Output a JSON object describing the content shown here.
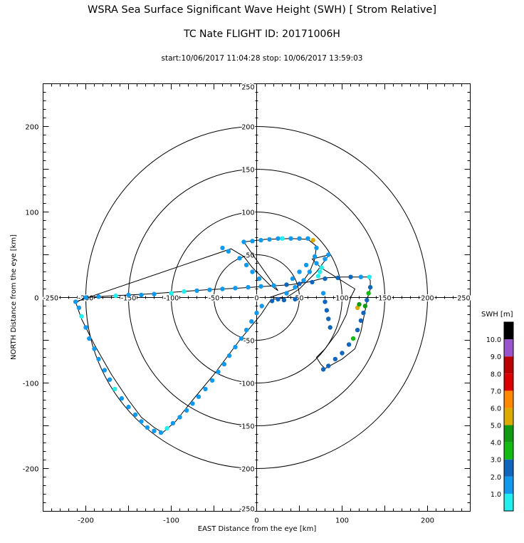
{
  "header": {
    "title": "WSRA Sea Surface Significant Wave Height (SWH) [ Strom Relative]",
    "subtitle": "TC Nate  FLIGHT ID: 20171006H",
    "timerange": "start:10/06/2017 11:04:28 stop: 10/06/2017 13:59:03"
  },
  "chart_data": {
    "type": "scatter",
    "title": "WSRA Sea Surface Significant Wave Height (SWH) [ Strom Relative]",
    "xlabel": "EAST Distance from the eye [km]",
    "ylabel": "NORTH Distance from the eye [km]",
    "xlim": [
      -250,
      250
    ],
    "ylim": [
      -250,
      250
    ],
    "xticks": [
      -200,
      -100,
      0,
      100,
      200
    ],
    "yticks": [
      -200,
      -100,
      0,
      100,
      200
    ],
    "inner_axis_ticks": [
      "-250",
      "-200",
      "-150",
      "-100",
      "-50",
      "0",
      "50",
      "100",
      "150",
      "200",
      "250"
    ],
    "range_rings_km": [
      50,
      100,
      150,
      200
    ],
    "colorbar": {
      "title": "SWH [m]",
      "levels": [
        "1.0",
        "2.0",
        "3.0",
        "4.0",
        "5.0",
        "6.0",
        "7.0",
        "8.0",
        "9.0",
        "10.0"
      ],
      "colors": [
        "#22eeee",
        "#1199ee",
        "#1166bb",
        "#11bb11",
        "#119911",
        "#ddaa00",
        "#ff8800",
        "#dd0000",
        "#bb0000",
        "#9955cc",
        "#000000"
      ]
    },
    "flight_track": [
      [
        -210,
        -5
      ],
      [
        -200,
        0
      ],
      [
        -170,
        2
      ],
      [
        -130,
        4
      ],
      [
        -100,
        6
      ],
      [
        -60,
        9
      ],
      [
        -20,
        11
      ],
      [
        10,
        13
      ],
      [
        40,
        15
      ],
      [
        60,
        18
      ],
      [
        80,
        23
      ],
      [
        100,
        24
      ],
      [
        130,
        24
      ],
      [
        133,
        20
      ],
      [
        133,
        10
      ],
      [
        130,
        0
      ],
      [
        128,
        -10
      ],
      [
        126,
        -20
      ],
      [
        122,
        -40
      ],
      [
        115,
        -60
      ],
      [
        100,
        -72
      ],
      [
        80,
        -83
      ],
      [
        75,
        -78
      ],
      [
        70,
        -70
      ],
      [
        80,
        -60
      ],
      [
        95,
        -40
      ],
      [
        105,
        -20
      ],
      [
        110,
        0
      ],
      [
        115,
        10
      ],
      [
        75,
        35
      ],
      [
        65,
        45
      ],
      [
        85,
        50
      ],
      [
        70,
        30
      ],
      [
        50,
        10
      ],
      [
        35,
        0
      ],
      [
        20,
        -2
      ],
      [
        15,
        -5
      ],
      [
        5,
        -20
      ],
      [
        -20,
        -50
      ],
      [
        -50,
        -90
      ],
      [
        -75,
        -120
      ],
      [
        -95,
        -145
      ],
      [
        -110,
        -158
      ],
      [
        -120,
        -152
      ],
      [
        -135,
        -140
      ],
      [
        -150,
        -120
      ],
      [
        -170,
        -90
      ],
      [
        -190,
        -55
      ],
      [
        -205,
        -25
      ],
      [
        -212,
        -5
      ],
      [
        -30,
        57
      ],
      [
        -15,
        48
      ],
      [
        -5,
        35
      ],
      [
        5,
        25
      ],
      [
        15,
        15
      ],
      [
        25,
        8
      ],
      [
        -15,
        65
      ],
      [
        10,
        68
      ],
      [
        40,
        69
      ],
      [
        60,
        68
      ],
      [
        70,
        60
      ],
      [
        68,
        45
      ],
      [
        62,
        30
      ],
      [
        55,
        20
      ],
      [
        45,
        10
      ],
      [
        30,
        5
      ],
      [
        15,
        0
      ]
    ],
    "points": [
      {
        "x": -212,
        "y": -5,
        "swh": 1.4
      },
      {
        "x": -208,
        "y": -12,
        "swh": 1.2
      },
      {
        "x": -205,
        "y": -22,
        "swh": 0.8
      },
      {
        "x": -200,
        "y": -35,
        "swh": 1.5
      },
      {
        "x": -196,
        "y": -48,
        "swh": 1.6
      },
      {
        "x": -190,
        "y": -60,
        "swh": 1.5
      },
      {
        "x": -185,
        "y": -72,
        "swh": 1.7
      },
      {
        "x": -178,
        "y": -85,
        "swh": 1.5
      },
      {
        "x": -172,
        "y": -96,
        "swh": 1.4
      },
      {
        "x": -166,
        "y": -107,
        "swh": 0.9
      },
      {
        "x": -158,
        "y": -118,
        "swh": 1.5
      },
      {
        "x": -150,
        "y": -128,
        "swh": 1.6
      },
      {
        "x": -142,
        "y": -137,
        "swh": 1.5
      },
      {
        "x": -135,
        "y": -145,
        "swh": 1.6
      },
      {
        "x": -128,
        "y": -152,
        "swh": 1.7
      },
      {
        "x": -120,
        "y": -156,
        "swh": 1.6
      },
      {
        "x": -112,
        "y": -158,
        "swh": 1.8
      },
      {
        "x": -105,
        "y": -153,
        "swh": 0.9
      },
      {
        "x": -98,
        "y": -147,
        "swh": 1.5
      },
      {
        "x": -90,
        "y": -140,
        "swh": 1.6
      },
      {
        "x": -82,
        "y": -132,
        "swh": 1.5
      },
      {
        "x": -75,
        "y": -124,
        "swh": 1.6
      },
      {
        "x": -68,
        "y": -116,
        "swh": 1.5
      },
      {
        "x": -60,
        "y": -107,
        "swh": 1.6
      },
      {
        "x": -52,
        "y": -97,
        "swh": 1.5
      },
      {
        "x": -45,
        "y": -87,
        "swh": 1.6
      },
      {
        "x": -38,
        "y": -78,
        "swh": 1.5
      },
      {
        "x": -32,
        "y": -68,
        "swh": 1.6
      },
      {
        "x": -25,
        "y": -58,
        "swh": 1.5
      },
      {
        "x": -18,
        "y": -48,
        "swh": 1.6
      },
      {
        "x": -12,
        "y": -38,
        "swh": 1.5
      },
      {
        "x": -6,
        "y": -28,
        "swh": 1.6
      },
      {
        "x": 0,
        "y": -18,
        "swh": 1.7
      },
      {
        "x": 6,
        "y": -10,
        "swh": 1.8
      },
      {
        "x": -200,
        "y": 0,
        "swh": 1.5
      },
      {
        "x": -185,
        "y": 1,
        "swh": 1.6
      },
      {
        "x": -165,
        "y": 2,
        "swh": 0.9
      },
      {
        "x": -150,
        "y": 3,
        "swh": 1.5
      },
      {
        "x": -135,
        "y": 3,
        "swh": 1.4
      },
      {
        "x": -120,
        "y": 4,
        "swh": 1.5
      },
      {
        "x": -100,
        "y": 5,
        "swh": 0.9
      },
      {
        "x": -85,
        "y": 7,
        "swh": 0.8
      },
      {
        "x": -70,
        "y": 8,
        "swh": 1.5
      },
      {
        "x": -55,
        "y": 9,
        "swh": 1.6
      },
      {
        "x": -40,
        "y": 10,
        "swh": 1.6
      },
      {
        "x": -25,
        "y": 11,
        "swh": 1.7
      },
      {
        "x": -10,
        "y": 12,
        "swh": 1.7
      },
      {
        "x": 5,
        "y": 13,
        "swh": 1.8
      },
      {
        "x": 20,
        "y": 14,
        "swh": 1.8
      },
      {
        "x": 35,
        "y": 15,
        "swh": 2.0
      },
      {
        "x": 50,
        "y": 16,
        "swh": 2.2
      },
      {
        "x": 65,
        "y": 18,
        "swh": 2.3
      },
      {
        "x": 80,
        "y": 22,
        "swh": 2.2
      },
      {
        "x": 95,
        "y": 23,
        "swh": 2.1
      },
      {
        "x": 110,
        "y": 24,
        "swh": 2.0
      },
      {
        "x": 122,
        "y": 24,
        "swh": 1.8
      },
      {
        "x": 132,
        "y": 24,
        "swh": 0.9
      },
      {
        "x": 133,
        "y": 12,
        "swh": 2.3
      },
      {
        "x": 131,
        "y": 5,
        "swh": 3.6
      },
      {
        "x": 129,
        "y": -3,
        "swh": 2.4
      },
      {
        "x": 127,
        "y": -10,
        "swh": 4.5
      },
      {
        "x": 125,
        "y": -18,
        "swh": 2.5
      },
      {
        "x": 122,
        "y": -27,
        "swh": 2.4
      },
      {
        "x": 118,
        "y": -38,
        "swh": 2.3
      },
      {
        "x": 113,
        "y": -48,
        "swh": 3.5
      },
      {
        "x": 108,
        "y": -55,
        "swh": 2.6
      },
      {
        "x": 100,
        "y": -65,
        "swh": 2.5
      },
      {
        "x": 92,
        "y": -72,
        "swh": 2.5
      },
      {
        "x": 84,
        "y": -80,
        "swh": 2.6
      },
      {
        "x": 78,
        "y": -84,
        "swh": 2.6
      },
      {
        "x": 82,
        "y": -15,
        "swh": 2.2
      },
      {
        "x": 84,
        "y": -25,
        "swh": 2.3
      },
      {
        "x": 86,
        "y": -35,
        "swh": 2.4
      },
      {
        "x": 80,
        "y": -5,
        "swh": 2.0
      },
      {
        "x": 78,
        "y": 5,
        "swh": 1.6
      },
      {
        "x": 72,
        "y": 25,
        "swh": 0.8
      },
      {
        "x": 74,
        "y": 30,
        "swh": 0.7
      },
      {
        "x": 76,
        "y": 35,
        "swh": 0.9
      },
      {
        "x": 70,
        "y": 40,
        "swh": 1.4
      },
      {
        "x": 80,
        "y": 45,
        "swh": 1.6
      },
      {
        "x": 84,
        "y": 50,
        "swh": 1.5
      },
      {
        "x": 62,
        "y": 30,
        "swh": 1.5
      },
      {
        "x": 55,
        "y": 20,
        "swh": 1.7
      },
      {
        "x": 45,
        "y": 12,
        "swh": 1.7
      },
      {
        "x": 35,
        "y": 5,
        "swh": 1.8
      },
      {
        "x": 25,
        "y": -2,
        "swh": 2.0
      },
      {
        "x": 32,
        "y": -3,
        "swh": 2.1
      },
      {
        "x": 45,
        "y": -2,
        "swh": 2.2
      },
      {
        "x": 18,
        "y": -4,
        "swh": 2.0
      },
      {
        "x": -40,
        "y": 58,
        "swh": 1.9
      },
      {
        "x": -33,
        "y": 54,
        "swh": 1.7
      },
      {
        "x": -20,
        "y": 46,
        "swh": 1.6
      },
      {
        "x": -12,
        "y": 38,
        "swh": 1.7
      },
      {
        "x": -5,
        "y": 30,
        "swh": 1.7
      },
      {
        "x": 3,
        "y": 22,
        "swh": 1.8
      },
      {
        "x": -15,
        "y": 65,
        "swh": 1.6
      },
      {
        "x": -5,
        "y": 66,
        "swh": 1.7
      },
      {
        "x": 5,
        "y": 67,
        "swh": 1.6
      },
      {
        "x": 15,
        "y": 68,
        "swh": 1.6
      },
      {
        "x": 25,
        "y": 69,
        "swh": 1.5
      },
      {
        "x": 30,
        "y": 69,
        "swh": 0.8
      },
      {
        "x": 40,
        "y": 69,
        "swh": 1.6
      },
      {
        "x": 50,
        "y": 69,
        "swh": 1.7
      },
      {
        "x": 60,
        "y": 69,
        "swh": 1.8
      },
      {
        "x": 66,
        "y": 67,
        "swh": 5.5
      },
      {
        "x": 70,
        "y": 58,
        "swh": 1.8
      },
      {
        "x": 68,
        "y": 48,
        "swh": 1.9
      },
      {
        "x": 58,
        "y": 38,
        "swh": 1.8
      },
      {
        "x": 50,
        "y": 30,
        "swh": 1.7
      },
      {
        "x": 42,
        "y": 22,
        "swh": 1.8
      },
      {
        "x": 118,
        "y": -12,
        "swh": 5.8
      },
      {
        "x": 120,
        "y": -8,
        "swh": 4.5
      }
    ]
  }
}
